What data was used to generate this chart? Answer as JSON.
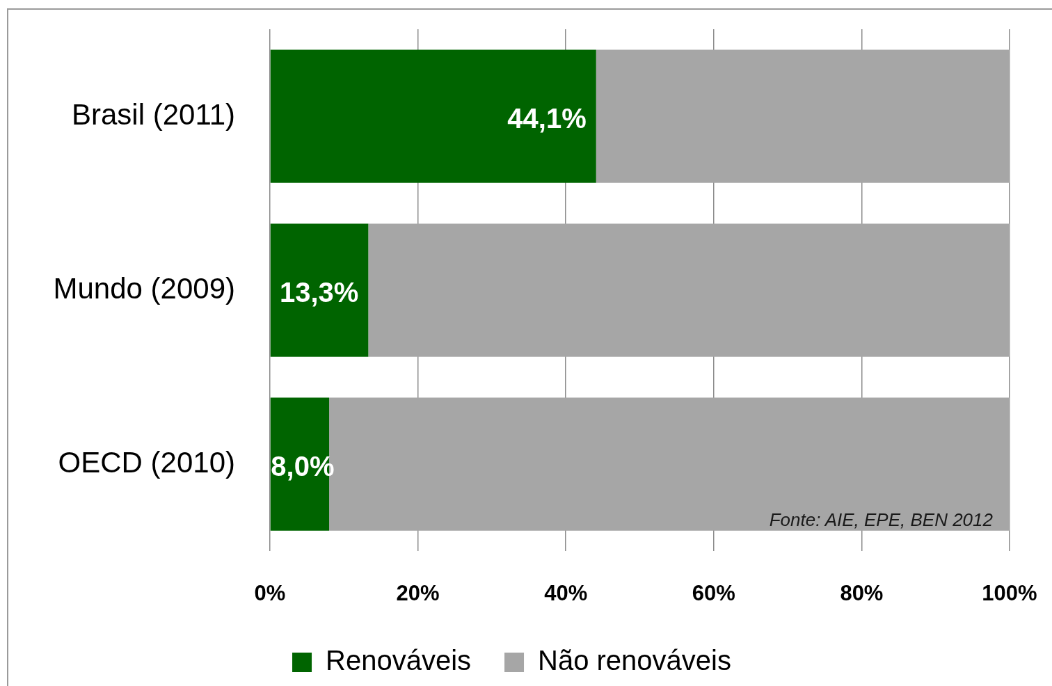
{
  "chart_data": {
    "type": "bar",
    "orientation": "horizontal",
    "stacked": true,
    "categories": [
      "Brasil (2011)",
      "Mundo (2009)",
      "OECD (2010)"
    ],
    "series": [
      {
        "name": "Renováveis",
        "color": "#006400",
        "values": [
          44.1,
          13.3,
          8.0
        ],
        "value_labels": [
          "44,1%",
          "13,3%",
          "8,0%"
        ]
      },
      {
        "name": "Não renováveis",
        "color": "#a6a6a6",
        "values": [
          55.9,
          86.7,
          92.0
        ]
      }
    ],
    "xlim": [
      0,
      100
    ],
    "xticks": [
      {
        "value": 0,
        "label": "0%"
      },
      {
        "value": 20,
        "label": "20%"
      },
      {
        "value": 40,
        "label": "40%"
      },
      {
        "value": 60,
        "label": "60%"
      },
      {
        "value": 80,
        "label": "80%"
      },
      {
        "value": 100,
        "label": "100%"
      }
    ],
    "grid": "x",
    "legend": "bottom",
    "annotations": [
      "Fonte: AIE, EPE, BEN 2012"
    ]
  }
}
